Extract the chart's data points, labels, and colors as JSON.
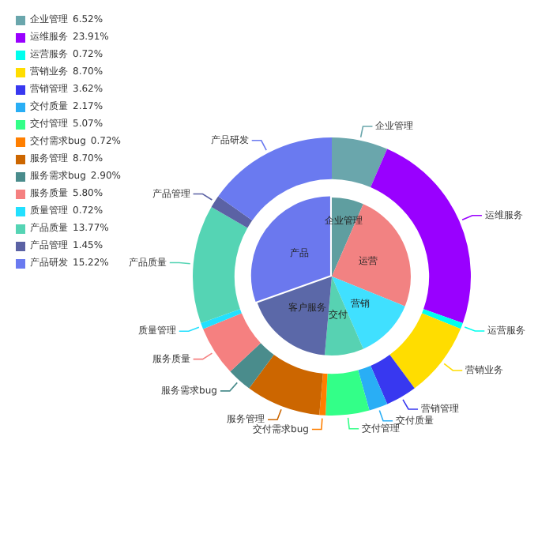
{
  "chart_data": [
    {
      "type": "donut",
      "categories": [
        "企业管理",
        "运维服务",
        "运营服务",
        "营销业务",
        "营销管理",
        "交付质量",
        "交付管理",
        "交付需求bug",
        "服务管理",
        "服务需求bug",
        "服务质量",
        "质量管理",
        "产品质量",
        "产品管理",
        "产品研发"
      ],
      "values": [
        6.52,
        23.91,
        0.72,
        8.7,
        3.62,
        2.17,
        5.07,
        0.72,
        8.7,
        2.9,
        5.8,
        0.72,
        13.77,
        1.45,
        15.22
      ],
      "value_labels": [
        "6.52%",
        "23.91%",
        "0.72%",
        "8.70%",
        "3.62%",
        "2.17%",
        "5.07%",
        "0.72%",
        "8.70%",
        "2.90%",
        "5.80%",
        "0.72%",
        "13.77%",
        "1.45%",
        "15.22%"
      ],
      "colors": [
        "#6aa6ac",
        "#9900ff",
        "#00ffee",
        "#ffdd00",
        "#3838f0",
        "#29aef5",
        "#33ff88",
        "#ff7f00",
        "#cc6600",
        "#4a8c8c",
        "#f58080",
        "#22e0ff",
        "#55d4b4",
        "#5b62a4",
        "#6a7af0"
      ],
      "legend": "top left"
    },
    {
      "type": "pie",
      "categories": [
        "企业管理",
        "运营",
        "营销",
        "交付",
        "客户服务",
        "产品"
      ],
      "values": [
        6.52,
        24.63,
        12.32,
        7.97,
        18.12,
        30.44
      ],
      "colors": [
        "#5f9ea0",
        "#f28282",
        "#40e0ff",
        "#57d2b2",
        "#5b68a8",
        "#6b78ee"
      ]
    }
  ]
}
